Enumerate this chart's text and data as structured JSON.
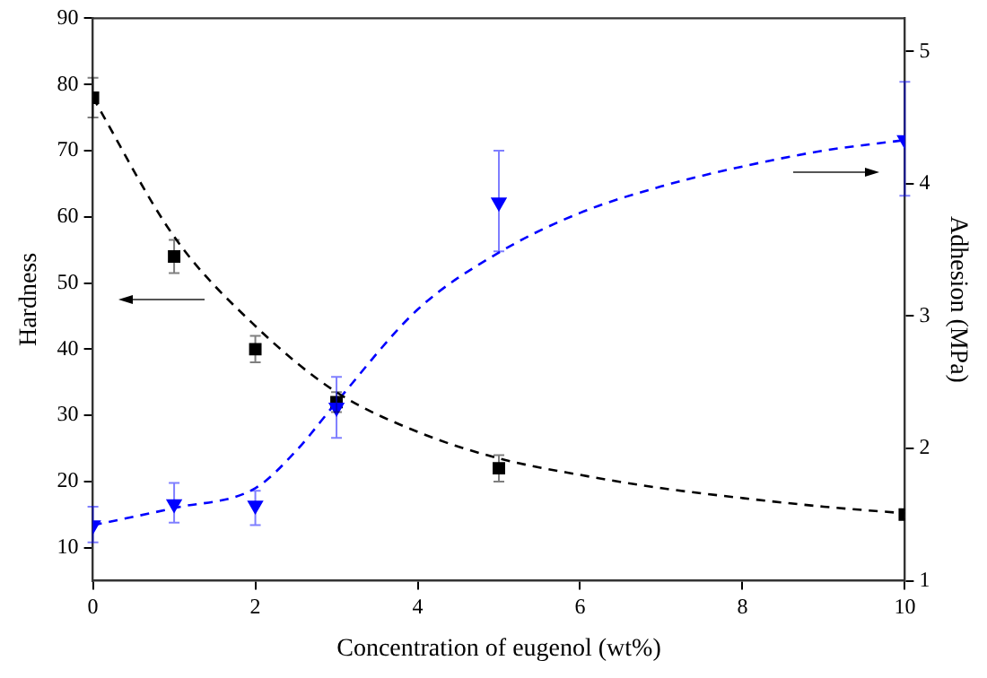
{
  "chart_data": {
    "type": "scatter",
    "xlabel": "Concentration of eugenol (wt%)",
    "ylabel": "Hardness",
    "y2label": "Adhesion (MPa)",
    "xlim": [
      0,
      10
    ],
    "xticks": [
      0,
      2,
      4,
      6,
      8,
      10
    ],
    "ylim": [
      5,
      90
    ],
    "yticks": [
      10,
      20,
      30,
      40,
      50,
      60,
      70,
      80,
      90
    ],
    "y2lim": [
      1,
      5.25
    ],
    "y2ticks": [
      1,
      2,
      3,
      4,
      5
    ],
    "grid": false,
    "legend": false,
    "series": [
      {
        "color": "#000000",
        "marker": "square",
        "x": [
          0,
          1,
          2,
          3,
          5,
          10
        ],
        "values": [
          78,
          54,
          40,
          32,
          22,
          15
        ],
        "errors": [
          [
            75,
            81
          ],
          [
            51.5,
            56.5
          ],
          [
            38,
            42
          ],
          [
            30.5,
            33.5
          ],
          [
            20,
            24
          ],
          null
        ]
      },
      {
        "color": "#0000ff",
        "marker": "triangle",
        "axis": "y2",
        "x": [
          0,
          1,
          2,
          3,
          5,
          10
        ],
        "values": [
          1.42,
          1.58,
          1.57,
          2.31,
          3.86,
          4.33
        ],
        "errors": [
          [
            1.29,
            1.56
          ],
          [
            1.44,
            1.74
          ],
          [
            1.42,
            1.68
          ],
          [
            2.08,
            2.54
          ],
          [
            3.49,
            4.25
          ],
          [
            3.91,
            4.77
          ]
        ]
      },
      {
        "type": "line",
        "color": "#000000",
        "marker": "none",
        "line_style": "dashed",
        "x": [
          0,
          1,
          2,
          3,
          4,
          5,
          6,
          7,
          8,
          9,
          10
        ],
        "values": [
          78,
          57,
          43.5,
          33.5,
          27.5,
          23.5,
          21,
          19,
          17.5,
          16.2,
          15.2
        ]
      },
      {
        "type": "line",
        "color": "#0000ff",
        "marker": "none",
        "line_style": "dashed",
        "axis": "y2",
        "x": [
          0,
          1,
          2,
          2.5,
          3,
          4,
          5,
          6,
          7,
          8,
          9,
          10
        ],
        "values": [
          1.42,
          1.55,
          1.7,
          1.98,
          2.35,
          3.05,
          3.48,
          3.78,
          3.98,
          4.13,
          4.25,
          4.33
        ]
      }
    ]
  }
}
